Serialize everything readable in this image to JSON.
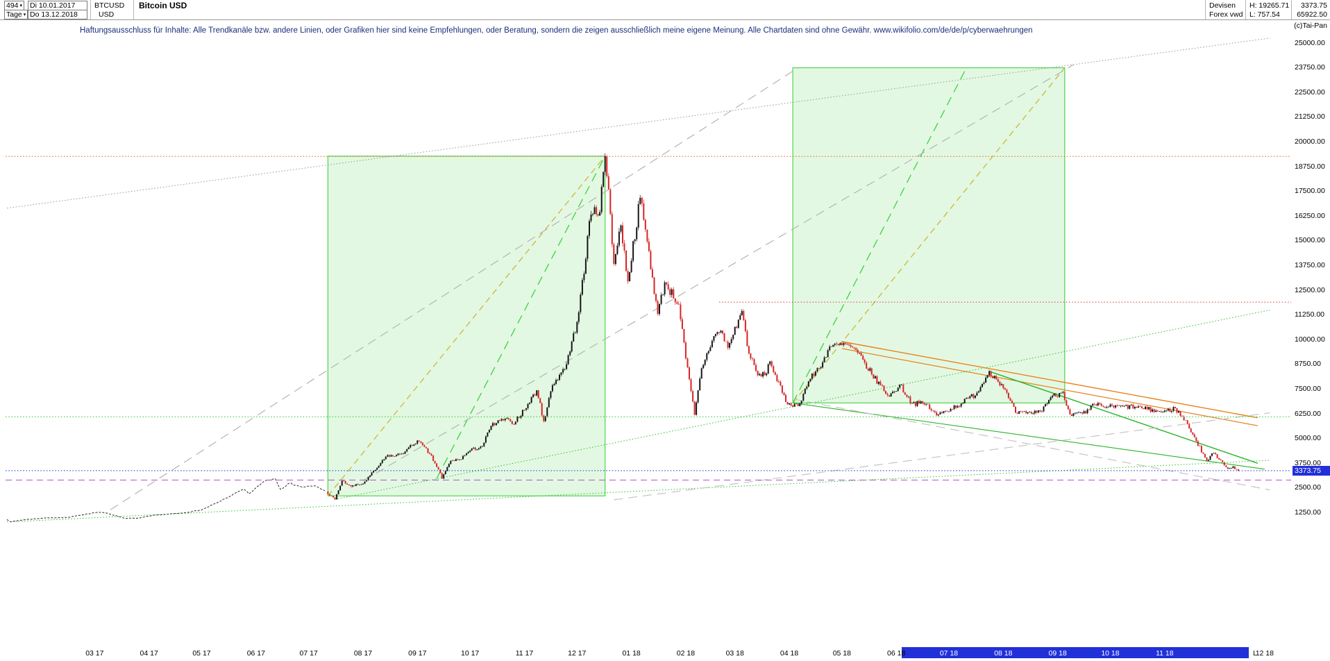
{
  "header": {
    "bars_value": "494",
    "range_start": "Di 10.01.2017",
    "timeframe": "Tage",
    "range_end": "Do 13.12.2018",
    "symbol": "BTCUSD",
    "currency": "USD",
    "title": "Bitcoin USD",
    "market": "Devisen",
    "feed": "Forex vwd",
    "period_high": "H: 19265.71",
    "period_low": "L: 757.54",
    "last_price": "3373.75",
    "secondary_value": "65922.50",
    "copyright": "(c)Tai-Pan"
  },
  "disclaimer": "Haftungsausschluss für Inhalte: Alle Trendkanäle bzw. andere Linien, oder Grafiken hier sind keine Empfehlungen, oder Beratung, sondern die zeigen ausschließlich meine eigene Meinung. Alle Chartdaten sind ohne Gewähr.  www.wikifolio.com/de/de/p/cyberwaehrungen",
  "icons": {
    "dropdown_caret": "▾"
  },
  "colors": {
    "up": "#141414",
    "down": "#d62424",
    "pre_line": "#2b2b2b",
    "box_fill": "#58d858",
    "box_fill_opacity": "0.17",
    "box_border": "#4fd44f",
    "accent_blue": "#2230d8"
  },
  "price_axis": {
    "max": 25000,
    "min": 1250,
    "step": 1250,
    "badge_text": "3373.75",
    "badge_color": "#2230d8"
  },
  "x_axis": {
    "months": [
      {
        "label": "03 17",
        "date": "2017-03-01"
      },
      {
        "label": "04 17",
        "date": "2017-04-01"
      },
      {
        "label": "05 17",
        "date": "2017-05-01"
      },
      {
        "label": "06 17",
        "date": "2017-06-01"
      },
      {
        "label": "07 17",
        "date": "2017-07-01"
      },
      {
        "label": "08 17",
        "date": "2017-08-01"
      },
      {
        "label": "09 17",
        "date": "2017-09-01"
      },
      {
        "label": "10 17",
        "date": "2017-10-01"
      },
      {
        "label": "11 17",
        "date": "2017-11-01"
      },
      {
        "label": "12 17",
        "date": "2017-12-01"
      },
      {
        "label": "01 18",
        "date": "2018-01-01"
      },
      {
        "label": "02 18",
        "date": "2018-02-01"
      },
      {
        "label": "03 18",
        "date": "2018-03-01"
      },
      {
        "label": "04 18",
        "date": "2018-04-01"
      },
      {
        "label": "05 18",
        "date": "2018-05-01"
      },
      {
        "label": "06 18",
        "date": "2018-06-01"
      },
      {
        "label": "07 18",
        "date": "2018-07-01"
      },
      {
        "label": "08 18",
        "date": "2018-08-01"
      },
      {
        "label": "09 18",
        "date": "2018-09-01"
      },
      {
        "label": "10 18",
        "date": "2018-10-01"
      },
      {
        "label": "11 18",
        "date": "2018-11-01"
      },
      {
        "label": "12 18",
        "date": "2018-12-28"
      }
    ]
  },
  "scrollbar": {
    "from_date": "2018-06-04",
    "to_date": "2018-12-19",
    "color": "#2230d8",
    "last_marker": "L"
  },
  "chart_data": {
    "type": "candlestick",
    "title": "Bitcoin USD",
    "symbol": "BTCUSD",
    "timeframe": "Tage",
    "start_date": "2017-01-10",
    "end_date": "2018-12-13",
    "period_high": 19265.71,
    "period_low": 757.54,
    "last_close": 3373.75,
    "line_until": "2017-07-11",
    "close_anchors": [
      [
        "2017-01-10",
        905
      ],
      [
        "2017-01-12",
        790
      ],
      [
        "2017-01-20",
        895
      ],
      [
        "2017-02-01",
        985
      ],
      [
        "2017-02-14",
        1010
      ],
      [
        "2017-02-24",
        1180
      ],
      [
        "2017-03-03",
        1275
      ],
      [
        "2017-03-08",
        1230
      ],
      [
        "2017-03-18",
        970
      ],
      [
        "2017-03-25",
        965
      ],
      [
        "2017-04-05",
        1130
      ],
      [
        "2017-04-20",
        1230
      ],
      [
        "2017-05-01",
        1390
      ],
      [
        "2017-05-10",
        1760
      ],
      [
        "2017-05-25",
        2440
      ],
      [
        "2017-05-28",
        2200
      ],
      [
        "2017-06-06",
        2870
      ],
      [
        "2017-06-12",
        2970
      ],
      [
        "2017-06-15",
        2430
      ],
      [
        "2017-06-20",
        2740
      ],
      [
        "2017-06-27",
        2550
      ],
      [
        "2017-07-05",
        2600
      ],
      [
        "2017-07-10",
        2370
      ],
      [
        "2017-07-16",
        1920
      ],
      [
        "2017-07-20",
        2860
      ],
      [
        "2017-07-25",
        2580
      ],
      [
        "2017-08-01",
        2720
      ],
      [
        "2017-08-08",
        3420
      ],
      [
        "2017-08-15",
        4160
      ],
      [
        "2017-08-19",
        4100
      ],
      [
        "2017-08-25",
        4350
      ],
      [
        "2017-09-01",
        4900
      ],
      [
        "2017-09-08",
        4230
      ],
      [
        "2017-09-14",
        3250
      ],
      [
        "2017-09-15",
        2980
      ],
      [
        "2017-09-20",
        3880
      ],
      [
        "2017-09-25",
        3930
      ],
      [
        "2017-10-01",
        4400
      ],
      [
        "2017-10-08",
        4610
      ],
      [
        "2017-10-13",
        5640
      ],
      [
        "2017-10-21",
        6010
      ],
      [
        "2017-10-25",
        5730
      ],
      [
        "2017-11-01",
        6450
      ],
      [
        "2017-11-08",
        7440
      ],
      [
        "2017-11-12",
        5880
      ],
      [
        "2017-11-17",
        7700
      ],
      [
        "2017-11-25",
        8760
      ],
      [
        "2017-12-01",
        10900
      ],
      [
        "2017-12-06",
        14090
      ],
      [
        "2017-12-08",
        16000
      ],
      [
        "2017-12-11",
        16700
      ],
      [
        "2017-12-14",
        16450
      ],
      [
        "2017-12-17",
        19280
      ],
      [
        "2017-12-19",
        17600
      ],
      [
        "2017-12-22",
        13830
      ],
      [
        "2017-12-26",
        15780
      ],
      [
        "2017-12-30",
        12950
      ],
      [
        "2018-01-06",
        17170
      ],
      [
        "2018-01-10",
        14970
      ],
      [
        "2018-01-16",
        11300
      ],
      [
        "2018-01-20",
        12900
      ],
      [
        "2018-01-28",
        11780
      ],
      [
        "2018-02-01",
        9050
      ],
      [
        "2018-02-06",
        6200
      ],
      [
        "2018-02-10",
        8560
      ],
      [
        "2018-02-17",
        10180
      ],
      [
        "2018-02-21",
        10450
      ],
      [
        "2018-02-25",
        9590
      ],
      [
        "2018-03-05",
        11450
      ],
      [
        "2018-03-09",
        9300
      ],
      [
        "2018-03-14",
        8200
      ],
      [
        "2018-03-18",
        8200
      ],
      [
        "2018-03-21",
        8900
      ],
      [
        "2018-03-30",
        6850
      ],
      [
        "2018-04-06",
        6640
      ],
      [
        "2018-04-12",
        7890
      ],
      [
        "2018-04-20",
        8860
      ],
      [
        "2018-04-24",
        9650
      ],
      [
        "2018-05-04",
        9750
      ],
      [
        "2018-05-10",
        9330
      ],
      [
        "2018-05-18",
        8250
      ],
      [
        "2018-05-28",
        7130
      ],
      [
        "2018-06-03",
        7720
      ],
      [
        "2018-06-10",
        6790
      ],
      [
        "2018-06-18",
        6740
      ],
      [
        "2018-06-24",
        6170
      ],
      [
        "2018-06-29",
        6400
      ],
      [
        "2018-07-08",
        6770
      ],
      [
        "2018-07-17",
        7320
      ],
      [
        "2018-07-24",
        8400
      ],
      [
        "2018-07-31",
        7750
      ],
      [
        "2018-08-08",
        6300
      ],
      [
        "2018-08-14",
        6270
      ],
      [
        "2018-08-22",
        6370
      ],
      [
        "2018-08-28",
        7080
      ],
      [
        "2018-09-04",
        7360
      ],
      [
        "2018-09-08",
        6220
      ],
      [
        "2018-09-17",
        6280
      ],
      [
        "2018-09-22",
        6730
      ],
      [
        "2018-09-29",
        6600
      ],
      [
        "2018-10-08",
        6620
      ],
      [
        "2018-10-15",
        6600
      ],
      [
        "2018-10-22",
        6480
      ],
      [
        "2018-10-31",
        6340
      ],
      [
        "2018-11-07",
        6530
      ],
      [
        "2018-11-14",
        5740
      ],
      [
        "2018-11-19",
        4870
      ],
      [
        "2018-11-25",
        3880
      ],
      [
        "2018-11-29",
        4270
      ],
      [
        "2018-12-03",
        3900
      ],
      [
        "2018-12-07",
        3470
      ],
      [
        "2018-12-10",
        3590
      ],
      [
        "2018-12-13",
        3373.75
      ]
    ],
    "levels": [
      {
        "price": 19265.71,
        "color": "#e06428",
        "style": "dotted"
      },
      {
        "price": 11900,
        "color": "#cc4040",
        "style": "dotted",
        "from": "2018-02-20"
      },
      {
        "price": 6100,
        "color": "#2ec82e",
        "style": "dotted"
      },
      {
        "price": 3373.75,
        "color": "#2230d8",
        "style": "dotted"
      },
      {
        "price": 2900,
        "color": "#b050c8",
        "style": "dashed"
      }
    ],
    "trendlines": [
      {
        "from": "2017-07-12",
        "p1": 2100,
        "to": "2017-12-17",
        "p2": 19280,
        "color": "#c9b832",
        "style": "dashed",
        "width": 1.3
      },
      {
        "from": "2017-09-12",
        "p1": 2980,
        "to": "2017-12-17",
        "p2": 19280,
        "color": "#3ad43a",
        "style": "longdash",
        "width": 1.3
      },
      {
        "from": "2018-04-03",
        "p1": 6800,
        "to": "2018-09-05",
        "p2": 23750,
        "color": "#c9b832",
        "style": "dashed",
        "width": 1.3
      },
      {
        "from": "2018-04-03",
        "p1": 6800,
        "to": "2018-07-11",
        "p2": 23750,
        "color": "#3ad43a",
        "style": "longdash",
        "width": 1.3
      },
      {
        "from": "2018-05-01",
        "p1": 9900,
        "to": "2018-12-24",
        "p2": 6050,
        "color": "#e8821e",
        "style": "solid",
        "width": 1.4
      },
      {
        "from": "2018-05-01",
        "p1": 9550,
        "to": "2018-12-24",
        "p2": 5650,
        "color": "#e8821e",
        "style": "solid",
        "width": 1.2
      },
      {
        "from": "2018-07-24",
        "p1": 8400,
        "to": "2018-12-24",
        "p2": 3750,
        "color": "#28b428",
        "style": "solid",
        "width": 1.4
      },
      {
        "from": "2018-04-03",
        "p1": 6800,
        "to": "2018-12-28",
        "p2": 3450,
        "color": "#28b428",
        "style": "solid",
        "width": 1.1
      },
      {
        "from": "2017-07-16",
        "p1": 1920,
        "to": "2018-12-31",
        "p2": 11500,
        "color": "#2ec82e",
        "style": "dotted",
        "width": 1
      },
      {
        "from": "2017-01-10",
        "p1": 780,
        "to": "2018-12-31",
        "p2": 3900,
        "color": "#2ec82e",
        "style": "dotted",
        "width": 1
      },
      {
        "from": "2017-07-25",
        "p1": 2500,
        "to": "2018-09-10",
        "p2": 23900,
        "color": "#b4b4b4",
        "style": "longdash",
        "width": 1.2
      },
      {
        "from": "2017-03-10",
        "p1": 1400,
        "to": "2018-04-06",
        "p2": 23750,
        "color": "#b4b4b4",
        "style": "longdash",
        "width": 1.2
      },
      {
        "from": "2017-12-22",
        "p1": 1900,
        "to": "2018-12-31",
        "p2": 6300,
        "color": "#c4c4c4",
        "style": "longdash",
        "width": 1.2
      },
      {
        "from": "2018-04-03",
        "p1": 7000,
        "to": "2018-12-31",
        "p2": 2400,
        "color": "#c4c4c4",
        "style": "longdash",
        "width": 1.2
      },
      {
        "from": "2017-01-10",
        "p1": 16650,
        "to": "2018-12-31",
        "p2": 25250,
        "color": "#9a9a9a",
        "style": "dotted",
        "width": 1
      }
    ],
    "boxes": [
      {
        "from": "2017-07-12",
        "to": "2017-12-17",
        "low": 2100,
        "high": 19280
      },
      {
        "from": "2018-04-03",
        "to": "2018-09-05",
        "low": 6800,
        "high": 23750
      }
    ]
  }
}
